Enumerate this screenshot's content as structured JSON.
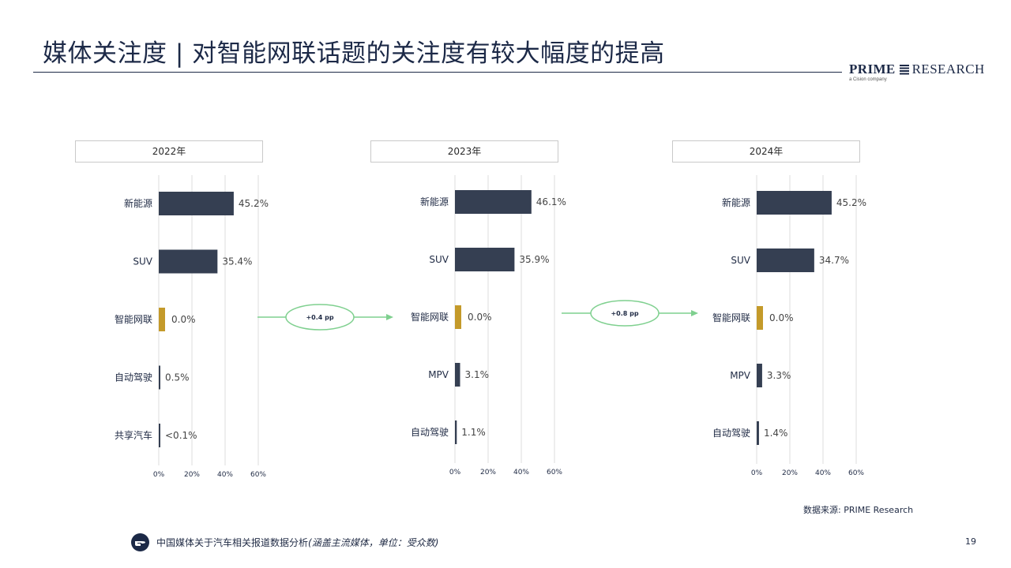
{
  "title": "媒体关注度 | 对智能网联话题的关注度有较大幅度的提高",
  "logo": {
    "brand_bold": "PRIME",
    "brand_rest": "RESEARCH",
    "tagline": "a Cision company"
  },
  "chart_data": [
    {
      "type": "bar",
      "title": "2022年",
      "categories": [
        "新能源",
        "SUV",
        "智能网联",
        "自动驾驶",
        "共享汽车"
      ],
      "values": [
        45.2,
        35.4,
        0.0,
        0.5,
        0.1
      ],
      "value_labels": [
        "45.2%",
        "35.4%",
        "0.0%",
        "0.5%",
        "<0.1%"
      ],
      "highlight_category": "智能网联",
      "xlim": [
        0,
        60
      ],
      "x_ticks": [
        "0%",
        "20%",
        "40%",
        "60%"
      ],
      "grid": true
    },
    {
      "type": "bar",
      "title": "2023年",
      "categories": [
        "新能源",
        "SUV",
        "智能网联",
        "MPV",
        "自动驾驶"
      ],
      "values": [
        46.1,
        35.9,
        0.0,
        3.1,
        1.1
      ],
      "value_labels": [
        "46.1%",
        "35.9%",
        "0.0%",
        "3.1%",
        "1.1%"
      ],
      "highlight_category": "智能网联",
      "xlim": [
        0,
        60
      ],
      "x_ticks": [
        "0%",
        "20%",
        "40%",
        "60%"
      ],
      "grid": true
    },
    {
      "type": "bar",
      "title": "2024年",
      "categories": [
        "新能源",
        "SUV",
        "智能网联",
        "MPV",
        "自动驾驶"
      ],
      "values": [
        45.2,
        34.7,
        0.0,
        3.3,
        1.4
      ],
      "value_labels": [
        "45.2%",
        "34.7%",
        "0.0%",
        "3.3%",
        "1.4%"
      ],
      "highlight_category": "智能网联",
      "xlim": [
        0,
        60
      ],
      "x_ticks": [
        "0%",
        "20%",
        "40%",
        "60%"
      ],
      "grid": true
    }
  ],
  "changes": [
    {
      "label": "+0.4 pp"
    },
    {
      "label": "+0.8 pp"
    }
  ],
  "colors": {
    "bar": "#353f52",
    "highlight": "#c49a2a",
    "arrow": "#7fd08f",
    "grid": "#dedede"
  },
  "source": "数据来源: PRIME Research",
  "footer": {
    "icon": "pointing-hand-icon",
    "text": "中国媒体关于汽车相关报道数据分析",
    "note": "(涵盖主流媒体，单位：受众数)"
  },
  "page_number": "19"
}
